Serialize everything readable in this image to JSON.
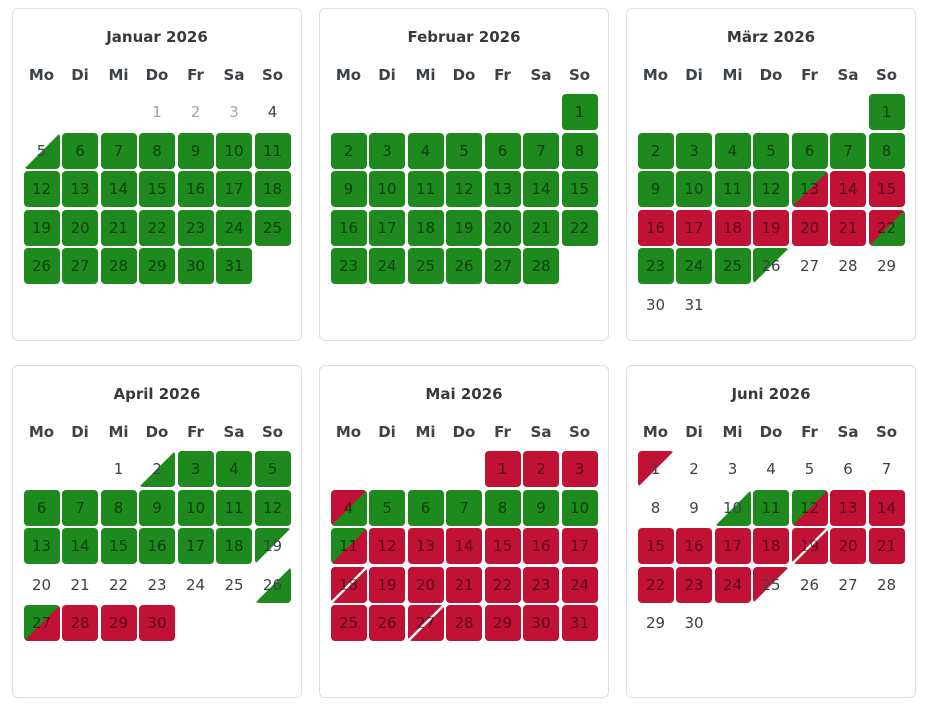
{
  "colors": {
    "free": "#1e8a1e",
    "booked": "#c11236",
    "cell_text": "rgba(0,0,0,0.55)",
    "plain_text": "#3d4247",
    "muted_text": "#a2a6aa",
    "title_text": "#373a3c",
    "card_border": "#dcdfe3"
  },
  "weekdays": [
    "Mo",
    "Di",
    "Mi",
    "Do",
    "Fr",
    "Sa",
    "So"
  ],
  "months": [
    {
      "title": "Januar 2026",
      "weeks": [
        [
          null,
          null,
          null,
          {
            "day": 1,
            "state": "muted"
          },
          {
            "day": 2,
            "state": "muted"
          },
          {
            "day": 3,
            "state": "muted"
          },
          {
            "day": 4,
            "state": "plain"
          }
        ],
        [
          {
            "day": 5,
            "state": "half-none-free"
          },
          {
            "day": 6,
            "state": "free"
          },
          {
            "day": 7,
            "state": "free"
          },
          {
            "day": 8,
            "state": "free"
          },
          {
            "day": 9,
            "state": "free"
          },
          {
            "day": 10,
            "state": "free"
          },
          {
            "day": 11,
            "state": "free"
          }
        ],
        [
          {
            "day": 12,
            "state": "free"
          },
          {
            "day": 13,
            "state": "free"
          },
          {
            "day": 14,
            "state": "free"
          },
          {
            "day": 15,
            "state": "free"
          },
          {
            "day": 16,
            "state": "free"
          },
          {
            "day": 17,
            "state": "free"
          },
          {
            "day": 18,
            "state": "free"
          }
        ],
        [
          {
            "day": 19,
            "state": "free"
          },
          {
            "day": 20,
            "state": "free"
          },
          {
            "day": 21,
            "state": "free"
          },
          {
            "day": 22,
            "state": "free"
          },
          {
            "day": 23,
            "state": "free"
          },
          {
            "day": 24,
            "state": "free"
          },
          {
            "day": 25,
            "state": "free"
          }
        ],
        [
          {
            "day": 26,
            "state": "free"
          },
          {
            "day": 27,
            "state": "free"
          },
          {
            "day": 28,
            "state": "free"
          },
          {
            "day": 29,
            "state": "free"
          },
          {
            "day": 30,
            "state": "free"
          },
          {
            "day": 31,
            "state": "free"
          },
          null
        ]
      ]
    },
    {
      "title": "Februar 2026",
      "weeks": [
        [
          null,
          null,
          null,
          null,
          null,
          null,
          {
            "day": 1,
            "state": "free"
          }
        ],
        [
          {
            "day": 2,
            "state": "free"
          },
          {
            "day": 3,
            "state": "free"
          },
          {
            "day": 4,
            "state": "free"
          },
          {
            "day": 5,
            "state": "free"
          },
          {
            "day": 6,
            "state": "free"
          },
          {
            "day": 7,
            "state": "free"
          },
          {
            "day": 8,
            "state": "free"
          }
        ],
        [
          {
            "day": 9,
            "state": "free"
          },
          {
            "day": 10,
            "state": "free"
          },
          {
            "day": 11,
            "state": "free"
          },
          {
            "day": 12,
            "state": "free"
          },
          {
            "day": 13,
            "state": "free"
          },
          {
            "day": 14,
            "state": "free"
          },
          {
            "day": 15,
            "state": "free"
          }
        ],
        [
          {
            "day": 16,
            "state": "free"
          },
          {
            "day": 17,
            "state": "free"
          },
          {
            "day": 18,
            "state": "free"
          },
          {
            "day": 19,
            "state": "free"
          },
          {
            "day": 20,
            "state": "free"
          },
          {
            "day": 21,
            "state": "free"
          },
          {
            "day": 22,
            "state": "free"
          }
        ],
        [
          {
            "day": 23,
            "state": "free"
          },
          {
            "day": 24,
            "state": "free"
          },
          {
            "day": 25,
            "state": "free"
          },
          {
            "day": 26,
            "state": "free"
          },
          {
            "day": 27,
            "state": "free"
          },
          {
            "day": 28,
            "state": "free"
          },
          null
        ]
      ]
    },
    {
      "title": "März 2026",
      "weeks": [
        [
          null,
          null,
          null,
          null,
          null,
          null,
          {
            "day": 1,
            "state": "free"
          }
        ],
        [
          {
            "day": 2,
            "state": "free"
          },
          {
            "day": 3,
            "state": "free"
          },
          {
            "day": 4,
            "state": "free"
          },
          {
            "day": 5,
            "state": "free"
          },
          {
            "day": 6,
            "state": "free"
          },
          {
            "day": 7,
            "state": "free"
          },
          {
            "day": 8,
            "state": "free"
          }
        ],
        [
          {
            "day": 9,
            "state": "free"
          },
          {
            "day": 10,
            "state": "free"
          },
          {
            "day": 11,
            "state": "free"
          },
          {
            "day": 12,
            "state": "free"
          },
          {
            "day": 13,
            "state": "half-free-booked"
          },
          {
            "day": 14,
            "state": "booked"
          },
          {
            "day": 15,
            "state": "booked"
          }
        ],
        [
          {
            "day": 16,
            "state": "booked"
          },
          {
            "day": 17,
            "state": "booked"
          },
          {
            "day": 18,
            "state": "booked"
          },
          {
            "day": 19,
            "state": "booked"
          },
          {
            "day": 20,
            "state": "booked"
          },
          {
            "day": 21,
            "state": "booked"
          },
          {
            "day": 22,
            "state": "half-booked-free"
          }
        ],
        [
          {
            "day": 23,
            "state": "free"
          },
          {
            "day": 24,
            "state": "free"
          },
          {
            "day": 25,
            "state": "free"
          },
          {
            "day": 26,
            "state": "half-free-none"
          },
          {
            "day": 27,
            "state": "plain"
          },
          {
            "day": 28,
            "state": "plain"
          },
          {
            "day": 29,
            "state": "plain"
          }
        ],
        [
          {
            "day": 30,
            "state": "plain"
          },
          {
            "day": 31,
            "state": "plain"
          },
          null,
          null,
          null,
          null,
          null
        ]
      ]
    },
    {
      "title": "April 2026",
      "weeks": [
        [
          null,
          null,
          {
            "day": 1,
            "state": "plain"
          },
          {
            "day": 2,
            "state": "half-none-free"
          },
          {
            "day": 3,
            "state": "free"
          },
          {
            "day": 4,
            "state": "free"
          },
          {
            "day": 5,
            "state": "free"
          }
        ],
        [
          {
            "day": 6,
            "state": "free"
          },
          {
            "day": 7,
            "state": "free"
          },
          {
            "day": 8,
            "state": "free"
          },
          {
            "day": 9,
            "state": "free"
          },
          {
            "day": 10,
            "state": "free"
          },
          {
            "day": 11,
            "state": "free"
          },
          {
            "day": 12,
            "state": "free"
          }
        ],
        [
          {
            "day": 13,
            "state": "free"
          },
          {
            "day": 14,
            "state": "free"
          },
          {
            "day": 15,
            "state": "free"
          },
          {
            "day": 16,
            "state": "free"
          },
          {
            "day": 17,
            "state": "free"
          },
          {
            "day": 18,
            "state": "free"
          },
          {
            "day": 19,
            "state": "half-free-none"
          }
        ],
        [
          {
            "day": 20,
            "state": "plain"
          },
          {
            "day": 21,
            "state": "plain"
          },
          {
            "day": 22,
            "state": "plain"
          },
          {
            "day": 23,
            "state": "plain"
          },
          {
            "day": 24,
            "state": "plain"
          },
          {
            "day": 25,
            "state": "plain"
          },
          {
            "day": 26,
            "state": "half-none-free"
          }
        ],
        [
          {
            "day": 27,
            "state": "half-free-booked"
          },
          {
            "day": 28,
            "state": "booked"
          },
          {
            "day": 29,
            "state": "booked"
          },
          {
            "day": 30,
            "state": "booked"
          },
          null,
          null,
          null
        ]
      ]
    },
    {
      "title": "Mai 2026",
      "weeks": [
        [
          null,
          null,
          null,
          null,
          {
            "day": 1,
            "state": "booked"
          },
          {
            "day": 2,
            "state": "booked"
          },
          {
            "day": 3,
            "state": "booked"
          }
        ],
        [
          {
            "day": 4,
            "state": "half-booked-free"
          },
          {
            "day": 5,
            "state": "free"
          },
          {
            "day": 6,
            "state": "free"
          },
          {
            "day": 7,
            "state": "free"
          },
          {
            "day": 8,
            "state": "free"
          },
          {
            "day": 9,
            "state": "free"
          },
          {
            "day": 10,
            "state": "free"
          }
        ],
        [
          {
            "day": 11,
            "state": "half-free-booked"
          },
          {
            "day": 12,
            "state": "booked"
          },
          {
            "day": 13,
            "state": "booked"
          },
          {
            "day": 14,
            "state": "booked"
          },
          {
            "day": 15,
            "state": "booked"
          },
          {
            "day": 16,
            "state": "booked"
          },
          {
            "day": 17,
            "state": "booked"
          }
        ],
        [
          {
            "day": 18,
            "state": "booked-changeover"
          },
          {
            "day": 19,
            "state": "booked"
          },
          {
            "day": 20,
            "state": "booked"
          },
          {
            "day": 21,
            "state": "booked"
          },
          {
            "day": 22,
            "state": "booked"
          },
          {
            "day": 23,
            "state": "booked"
          },
          {
            "day": 24,
            "state": "booked"
          }
        ],
        [
          {
            "day": 25,
            "state": "booked"
          },
          {
            "day": 26,
            "state": "booked"
          },
          {
            "day": 27,
            "state": "booked-changeover"
          },
          {
            "day": 28,
            "state": "booked"
          },
          {
            "day": 29,
            "state": "booked"
          },
          {
            "day": 30,
            "state": "booked"
          },
          {
            "day": 31,
            "state": "booked"
          }
        ]
      ]
    },
    {
      "title": "Juni 2026",
      "weeks": [
        [
          {
            "day": 1,
            "state": "half-booked-none"
          },
          {
            "day": 2,
            "state": "plain"
          },
          {
            "day": 3,
            "state": "plain"
          },
          {
            "day": 4,
            "state": "plain"
          },
          {
            "day": 5,
            "state": "plain"
          },
          {
            "day": 6,
            "state": "plain"
          },
          {
            "day": 7,
            "state": "plain"
          }
        ],
        [
          {
            "day": 8,
            "state": "plain"
          },
          {
            "day": 9,
            "state": "plain"
          },
          {
            "day": 10,
            "state": "half-none-free"
          },
          {
            "day": 11,
            "state": "free"
          },
          {
            "day": 12,
            "state": "half-free-booked"
          },
          {
            "day": 13,
            "state": "booked"
          },
          {
            "day": 14,
            "state": "booked"
          }
        ],
        [
          {
            "day": 15,
            "state": "booked"
          },
          {
            "day": 16,
            "state": "booked"
          },
          {
            "day": 17,
            "state": "booked"
          },
          {
            "day": 18,
            "state": "booked"
          },
          {
            "day": 19,
            "state": "booked-changeover"
          },
          {
            "day": 20,
            "state": "booked"
          },
          {
            "day": 21,
            "state": "booked"
          }
        ],
        [
          {
            "day": 22,
            "state": "booked"
          },
          {
            "day": 23,
            "state": "booked"
          },
          {
            "day": 24,
            "state": "booked"
          },
          {
            "day": 25,
            "state": "half-booked-none"
          },
          {
            "day": 26,
            "state": "plain"
          },
          {
            "day": 27,
            "state": "plain"
          },
          {
            "day": 28,
            "state": "plain"
          }
        ],
        [
          {
            "day": 29,
            "state": "plain"
          },
          {
            "day": 30,
            "state": "plain"
          },
          null,
          null,
          null,
          null,
          null
        ]
      ]
    }
  ]
}
